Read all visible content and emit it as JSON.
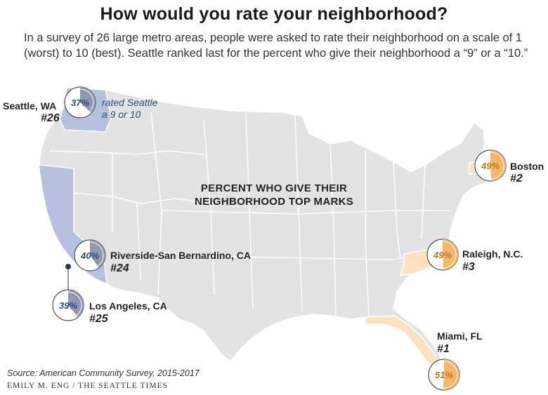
{
  "header": {
    "title": "How would you rate your neighborhood?",
    "subtitle": "In a survey of 26 large metro areas, people were asked to rate their neighborhood on a scale of 1 (worst) to 10 (best). Seattle ranked last for the percent who give their neighborhood a “9” or a “10.”"
  },
  "map": {
    "center_label_line1": "PERCENT WHO GIVE THEIR",
    "center_label_line2": "NEIGHBORHOOD TOP MARKS",
    "note_line1": "rated Seattle",
    "note_line2": "a 9 or 10",
    "colors": {
      "land": "#e3e3e3",
      "border": "#ffffff",
      "highlight_low": "#b8c0df",
      "highlight_high": "#fde2c2",
      "pie_blue": "#8f97b2",
      "pie_orange": "#f5b66c"
    }
  },
  "cities": [
    {
      "name": "Seattle, WA",
      "rank": "#26",
      "percent": "37%",
      "value": 37,
      "tone": "low"
    },
    {
      "name": "Boston",
      "rank": "#2",
      "percent": "49%",
      "value": 49,
      "tone": "high"
    },
    {
      "name": "Raleigh, N.C.",
      "rank": "#3",
      "percent": "49%",
      "value": 49,
      "tone": "high"
    },
    {
      "name": "Riverside-San Bernardino, CA",
      "rank": "#24",
      "percent": "40%",
      "value": 40,
      "tone": "low"
    },
    {
      "name": "Los Angeles, CA",
      "rank": "#25",
      "percent": "39%",
      "value": 39,
      "tone": "low"
    },
    {
      "name": "Miami, FL",
      "rank": "#1",
      "percent": "51%",
      "value": 51,
      "tone": "high"
    }
  ],
  "footer": {
    "source": "Source: American Community Survey, 2015-2017",
    "credit": "EMILY M. ENG / THE SEATTLE TIMES"
  }
}
